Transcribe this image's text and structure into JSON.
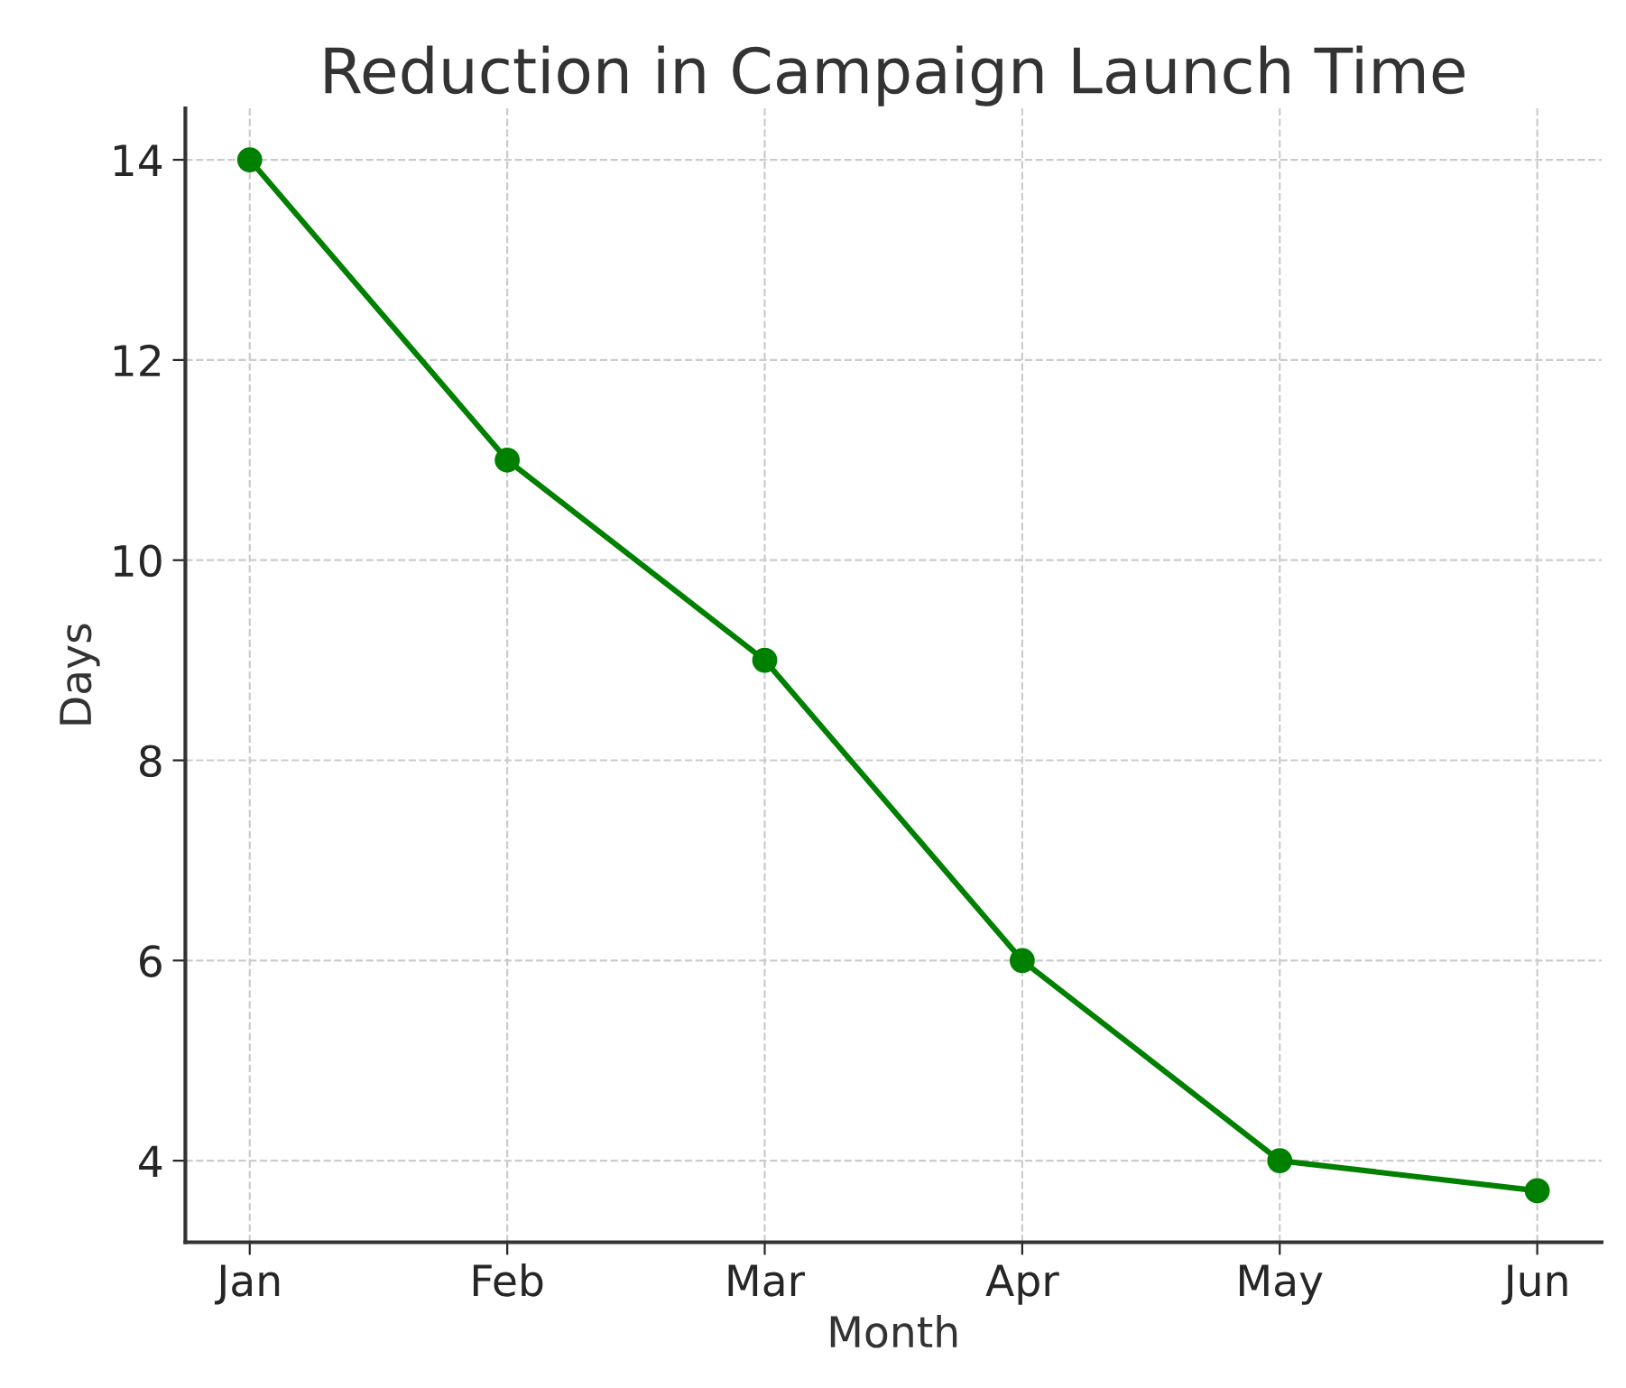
{
  "chart_data": {
    "type": "line",
    "title": "Reduction in Campaign Launch Time",
    "xlabel": "Month",
    "ylabel": "Days",
    "categories": [
      "Jan",
      "Feb",
      "Mar",
      "Apr",
      "May",
      "Jun"
    ],
    "series": [
      {
        "color": "#008000",
        "values": [
          14,
          11,
          9,
          6,
          4,
          3.7
        ]
      }
    ],
    "ylim": [
      3.185,
      14.515
    ],
    "yticks": [
      4,
      6,
      8,
      10,
      12,
      14
    ],
    "grid": true,
    "marker": "circle",
    "line_style": "solid"
  }
}
